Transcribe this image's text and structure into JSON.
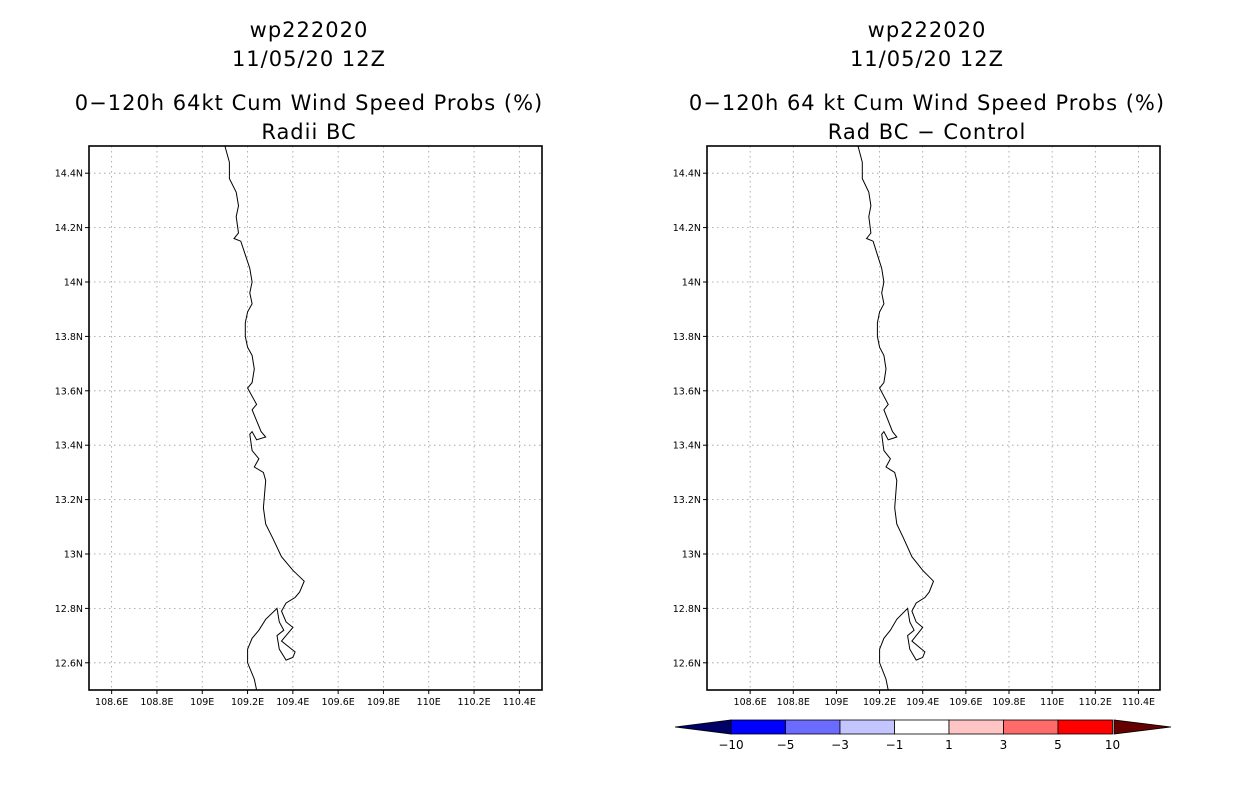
{
  "colors": {
    "grid": "#9a9a9a",
    "coast": "#000000",
    "frame": "#000000",
    "scale": [
      "#000066",
      "#0000ff",
      "#6b6bff",
      "#c4c4ff",
      "#ffffff",
      "#ffc4c4",
      "#ff6b6b",
      "#ff0000",
      "#660000"
    ]
  },
  "coastline": [
    [
      109.1,
      14.5
    ],
    [
      109.12,
      14.44
    ],
    [
      109.12,
      14.38
    ],
    [
      109.15,
      14.33
    ],
    [
      109.16,
      14.28
    ],
    [
      109.15,
      14.24
    ],
    [
      109.16,
      14.18
    ],
    [
      109.14,
      14.16
    ],
    [
      109.17,
      14.15
    ],
    [
      109.19,
      14.1
    ],
    [
      109.21,
      14.05
    ],
    [
      109.22,
      14.0
    ],
    [
      109.21,
      13.96
    ],
    [
      109.22,
      13.92
    ],
    [
      109.2,
      13.89
    ],
    [
      109.19,
      13.85
    ],
    [
      109.19,
      13.8
    ],
    [
      109.2,
      13.76
    ],
    [
      109.22,
      13.73
    ],
    [
      109.23,
      13.68
    ],
    [
      109.22,
      13.63
    ],
    [
      109.2,
      13.61
    ],
    [
      109.24,
      13.55
    ],
    [
      109.22,
      13.53
    ],
    [
      109.24,
      13.49
    ],
    [
      109.26,
      13.45
    ],
    [
      109.28,
      13.43
    ],
    [
      109.24,
      13.42
    ],
    [
      109.22,
      13.45
    ],
    [
      109.21,
      13.44
    ],
    [
      109.22,
      13.38
    ],
    [
      109.25,
      13.35
    ],
    [
      109.23,
      13.32
    ],
    [
      109.27,
      13.3
    ],
    [
      109.28,
      13.27
    ],
    [
      109.27,
      13.17
    ],
    [
      109.28,
      13.11
    ],
    [
      109.31,
      13.06
    ],
    [
      109.35,
      12.99
    ],
    [
      109.4,
      12.94
    ],
    [
      109.45,
      12.9
    ],
    [
      109.43,
      12.86
    ],
    [
      109.41,
      12.84
    ],
    [
      109.37,
      12.82
    ],
    [
      109.35,
      12.79
    ],
    [
      109.37,
      12.75
    ],
    [
      109.4,
      12.73
    ],
    [
      109.38,
      12.71
    ],
    [
      109.35,
      12.68
    ],
    [
      109.38,
      12.66
    ],
    [
      109.41,
      12.64
    ],
    [
      109.4,
      12.62
    ],
    [
      109.37,
      12.61
    ],
    [
      109.34,
      12.65
    ],
    [
      109.33,
      12.7
    ],
    [
      109.36,
      12.72
    ],
    [
      109.34,
      12.75
    ],
    [
      109.33,
      12.8
    ],
    [
      109.28,
      12.76
    ],
    [
      109.25,
      12.72
    ],
    [
      109.22,
      12.69
    ],
    [
      109.2,
      12.65
    ],
    [
      109.2,
      12.6
    ],
    [
      109.23,
      12.54
    ],
    [
      109.24,
      12.5
    ]
  ],
  "chart_data": [
    {
      "type": "map",
      "storm_id": "wp222020",
      "datetime": "11/05/20 12Z",
      "title": "0−120h 64kt Cum Wind Speed Probs (%)",
      "subtitle": "Radii BC",
      "xlim": [
        108.5,
        110.5
      ],
      "ylim": [
        12.5,
        14.5
      ],
      "xticks": [
        108.6,
        108.8,
        109.0,
        109.2,
        109.4,
        109.6,
        109.8,
        110.0,
        110.2,
        110.4
      ],
      "yticks": [
        12.6,
        12.8,
        13.0,
        13.2,
        13.4,
        13.6,
        13.8,
        14.0,
        14.2,
        14.4
      ],
      "xtick_labels": [
        "108.6E",
        "108.8E",
        "109E",
        "109.2E",
        "109.4E",
        "109.6E",
        "109.8E",
        "110E",
        "110.2E",
        "110.4E"
      ],
      "ytick_labels": [
        "12.6N",
        "12.8N",
        "13N",
        "13.2N",
        "13.4N",
        "13.6N",
        "13.8N",
        "14N",
        "14.2N",
        "14.4N"
      ],
      "grid": true
    },
    {
      "type": "map",
      "storm_id": "wp222020",
      "datetime": "11/05/20 12Z",
      "title": "0−120h 64 kt Cum Wind Speed Probs (%)",
      "subtitle": "Rad BC − Control",
      "xlim": [
        108.4,
        110.5
      ],
      "ylim": [
        12.5,
        14.5
      ],
      "xticks": [
        108.6,
        108.8,
        109.0,
        109.2,
        109.4,
        109.6,
        109.8,
        110.0,
        110.2,
        110.4
      ],
      "yticks": [
        12.6,
        12.8,
        13.0,
        13.2,
        13.4,
        13.6,
        13.8,
        14.0,
        14.2,
        14.4
      ],
      "xtick_labels": [
        "108.6E",
        "108.8E",
        "109E",
        "109.2E",
        "109.4E",
        "109.6E",
        "109.8E",
        "110E",
        "110.2E",
        "110.4E"
      ],
      "ytick_labels": [
        "12.6N",
        "12.8N",
        "13N",
        "13.2N",
        "13.4N",
        "13.6N",
        "13.8N",
        "14N",
        "14.2N",
        "14.4N"
      ],
      "grid": true,
      "colorbar": {
        "levels": [
          "−10",
          "−5",
          "−3",
          "−1",
          "1",
          "3",
          "5",
          "10"
        ]
      }
    }
  ]
}
